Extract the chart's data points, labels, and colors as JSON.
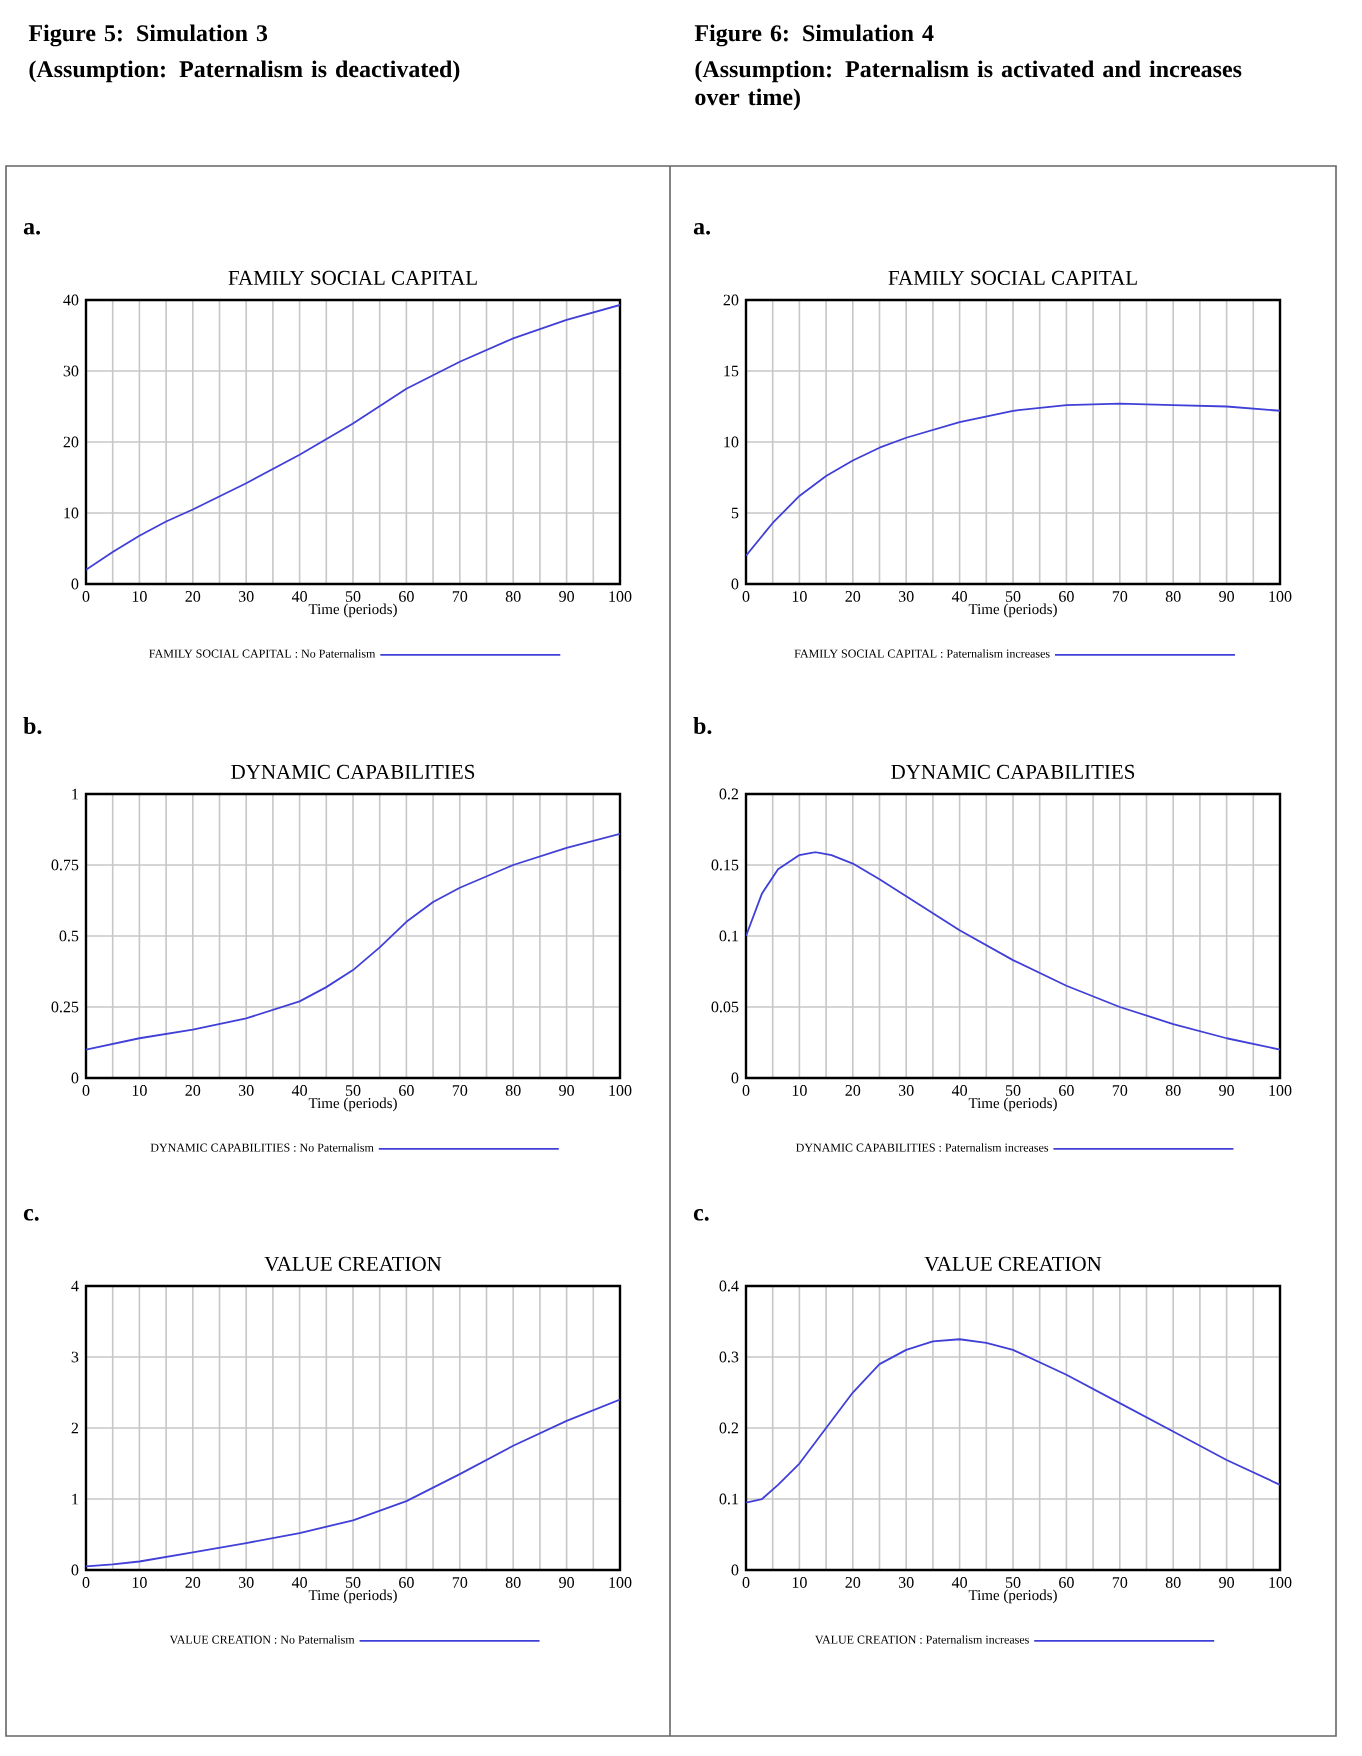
{
  "chart_data": [
    {
      "type": "line",
      "title": "FAMILY SOCIAL CAPITAL",
      "xlabel": "Time (periods)",
      "x": [
        0,
        5,
        10,
        15,
        20,
        30,
        40,
        50,
        60,
        70,
        80,
        90,
        100
      ],
      "series": [
        {
          "name": "FAMILY SOCIAL CAPITAL : No Paternalism",
          "color": "#4040d8",
          "values": [
            2,
            4.5,
            6.8,
            8.8,
            10.5,
            14.2,
            18.2,
            22.6,
            27.5,
            31.3,
            34.6,
            37.2,
            39.3
          ]
        }
      ],
      "xlim": [
        0,
        100
      ],
      "xticks": [
        0,
        10,
        20,
        30,
        40,
        50,
        60,
        70,
        80,
        90,
        100
      ],
      "ylim": [
        0,
        40
      ],
      "yticks": [
        0,
        10,
        20,
        30,
        40
      ],
      "grid": true,
      "legend": "bottom",
      "annotations": [
        "Figure 5: Simulation 3",
        "(Assumption: Paternalism is deactivated)",
        "a."
      ]
    },
    {
      "type": "line",
      "title": "FAMILY SOCIAL CAPITAL",
      "xlabel": "Time (periods)",
      "x": [
        0,
        5,
        10,
        15,
        20,
        25,
        30,
        40,
        50,
        60,
        70,
        80,
        90,
        100
      ],
      "series": [
        {
          "name": "FAMILY SOCIAL CAPITAL : Paternalism increases",
          "color": "#4040d8",
          "values": [
            2,
            4.3,
            6.2,
            7.6,
            8.7,
            9.6,
            10.3,
            11.4,
            12.2,
            12.6,
            12.7,
            12.6,
            12.5,
            12.2
          ]
        }
      ],
      "xlim": [
        0,
        100
      ],
      "xticks": [
        0,
        10,
        20,
        30,
        40,
        50,
        60,
        70,
        80,
        90,
        100
      ],
      "ylim": [
        0,
        20
      ],
      "yticks": [
        0,
        5,
        10,
        15,
        20
      ],
      "grid": true,
      "legend": "bottom",
      "annotations": [
        "Figure 6: Simulation 4",
        "(Assumption: Paternalism is activated and increases over time)",
        "a."
      ]
    },
    {
      "type": "line",
      "title": "DYNAMIC CAPABILITIES",
      "xlabel": "Time (periods)",
      "x": [
        0,
        10,
        20,
        30,
        40,
        45,
        50,
        55,
        60,
        65,
        70,
        80,
        90,
        100
      ],
      "series": [
        {
          "name": "DYNAMIC CAPABILITIES : No Paternalism",
          "color": "#4040d8",
          "values": [
            0.1,
            0.14,
            0.17,
            0.21,
            0.27,
            0.32,
            0.38,
            0.46,
            0.55,
            0.62,
            0.67,
            0.75,
            0.81,
            0.86
          ]
        }
      ],
      "xlim": [
        0,
        100
      ],
      "xticks": [
        0,
        10,
        20,
        30,
        40,
        50,
        60,
        70,
        80,
        90,
        100
      ],
      "ylim": [
        0,
        1
      ],
      "yticks": [
        0,
        0.25,
        0.5,
        0.75,
        1
      ],
      "grid": true,
      "legend": "bottom",
      "annotations": [
        "b."
      ]
    },
    {
      "type": "line",
      "title": "DYNAMIC CAPABILITIES",
      "xlabel": "Time (periods)",
      "x": [
        0,
        3,
        6,
        10,
        13,
        16,
        20,
        25,
        30,
        40,
        50,
        60,
        70,
        80,
        90,
        100
      ],
      "series": [
        {
          "name": "DYNAMIC CAPABILITIES : Paternalism increases",
          "color": "#4040d8",
          "values": [
            0.1,
            0.13,
            0.147,
            0.157,
            0.159,
            0.157,
            0.151,
            0.14,
            0.128,
            0.104,
            0.083,
            0.065,
            0.05,
            0.038,
            0.028,
            0.02
          ]
        }
      ],
      "xlim": [
        0,
        100
      ],
      "xticks": [
        0,
        10,
        20,
        30,
        40,
        50,
        60,
        70,
        80,
        90,
        100
      ],
      "ylim": [
        0,
        0.2
      ],
      "yticks": [
        0,
        0.05,
        0.1,
        0.15,
        0.2
      ],
      "grid": true,
      "legend": "bottom",
      "annotations": [
        "b."
      ]
    },
    {
      "type": "line",
      "title": "VALUE CREATION",
      "xlabel": "Time (periods)",
      "x": [
        0,
        5,
        10,
        20,
        30,
        40,
        50,
        60,
        70,
        80,
        90,
        100
      ],
      "series": [
        {
          "name": "VALUE CREATION : No Paternalism",
          "color": "#4040d8",
          "values": [
            0.05,
            0.08,
            0.12,
            0.25,
            0.38,
            0.52,
            0.7,
            0.97,
            1.35,
            1.75,
            2.1,
            2.4
          ]
        }
      ],
      "xlim": [
        0,
        100
      ],
      "xticks": [
        0,
        10,
        20,
        30,
        40,
        50,
        60,
        70,
        80,
        90,
        100
      ],
      "ylim": [
        0,
        4
      ],
      "yticks": [
        0,
        1,
        2,
        3,
        4
      ],
      "grid": true,
      "legend": "bottom",
      "annotations": [
        "c."
      ]
    },
    {
      "type": "line",
      "title": "VALUE CREATION",
      "xlabel": "Time (periods)",
      "x": [
        0,
        3,
        6,
        10,
        15,
        20,
        25,
        30,
        35,
        40,
        45,
        50,
        60,
        70,
        80,
        90,
        100
      ],
      "series": [
        {
          "name": "VALUE CREATION : Paternalism increases",
          "color": "#4040d8",
          "values": [
            0.095,
            0.1,
            0.12,
            0.15,
            0.2,
            0.25,
            0.29,
            0.31,
            0.322,
            0.325,
            0.32,
            0.31,
            0.275,
            0.235,
            0.195,
            0.155,
            0.12
          ]
        }
      ],
      "xlim": [
        0,
        100
      ],
      "xticks": [
        0,
        10,
        20,
        30,
        40,
        50,
        60,
        70,
        80,
        90,
        100
      ],
      "ylim": [
        0,
        0.4
      ],
      "yticks": [
        0,
        0.1,
        0.2,
        0.3,
        0.4
      ],
      "grid": true,
      "legend": "bottom",
      "annotations": [
        "c."
      ]
    }
  ]
}
